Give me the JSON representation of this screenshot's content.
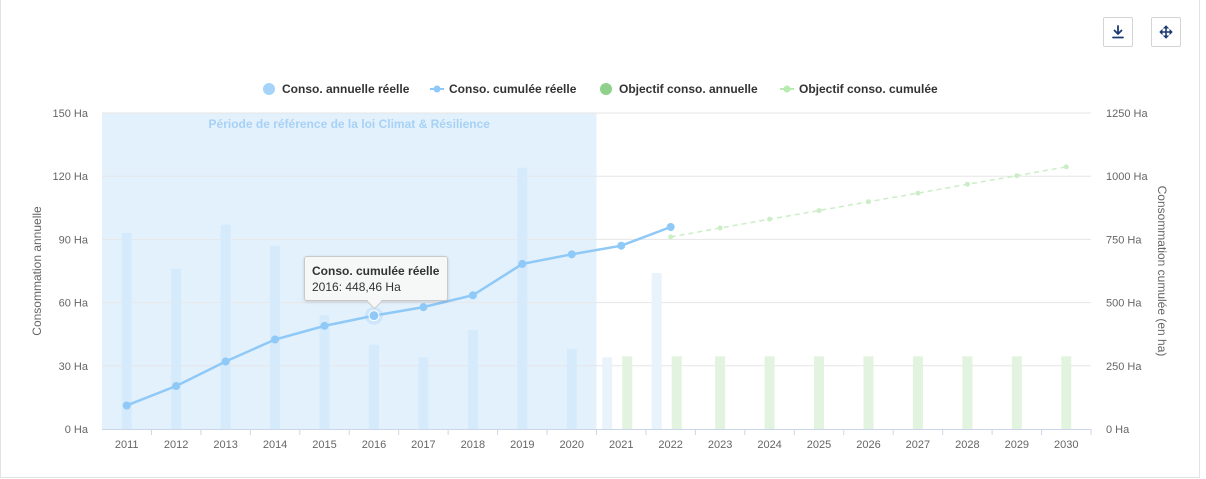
{
  "toolbar": {
    "download_icon": "download-icon",
    "fullscreen_icon": "move-arrows-icon"
  },
  "legend": [
    {
      "label": "Conso. annuelle réelle",
      "color": "#a6d3f9",
      "symbol": "circle"
    },
    {
      "label": "Conso. cumulée réelle",
      "color": "#8fc9f7",
      "symbol": "line-marker"
    },
    {
      "label": "Objectif conso. annuelle",
      "color": "#8fd18a",
      "symbol": "circle"
    },
    {
      "label": "Objectif conso. cumulée",
      "color": "#b6ecb0",
      "symbol": "line-marker"
    }
  ],
  "tooltip": {
    "title": "Conso. cumulée réelle",
    "body": "2016: 448,46 Ha"
  },
  "chart_data": {
    "type": "bar",
    "categories": [
      "2011",
      "2012",
      "2013",
      "2014",
      "2015",
      "2016",
      "2017",
      "2018",
      "2019",
      "2020",
      "2021",
      "2022",
      "2023",
      "2024",
      "2025",
      "2026",
      "2027",
      "2028",
      "2029",
      "2030"
    ],
    "band": {
      "label": "Période de référence de la loi Climat & Résilience",
      "from": "2011",
      "to": "2020",
      "color": "#e3f1fd"
    },
    "y_left": {
      "label": "Consommation annuelle",
      "min": 0,
      "max": 150,
      "ticks": [
        "0 Ha",
        "30 Ha",
        "60 Ha",
        "90 Ha",
        "120 Ha",
        "150 Ha"
      ]
    },
    "y_right": {
      "label": "Consommation cumulée (en ha)",
      "min": 0,
      "max": 1250,
      "ticks": [
        "0 Ha",
        "250 Ha",
        "500 Ha",
        "750 Ha",
        "1000 Ha",
        "1250 Ha"
      ]
    },
    "grid": true,
    "legend_position": "top",
    "series": [
      {
        "name": "Conso. annuelle réelle",
        "type": "bar",
        "axis": "left",
        "color": "#d5eafb",
        "values": [
          93,
          76,
          97,
          87,
          54,
          40,
          34,
          47,
          124,
          38,
          34,
          74,
          null,
          null,
          null,
          null,
          null,
          null,
          null,
          null
        ]
      },
      {
        "name": "Conso. cumulée réelle",
        "type": "line",
        "axis": "right",
        "color": "#8fc9f7",
        "values": [
          93,
          170,
          267,
          354,
          408,
          448.46,
          482,
          529,
          653,
          691,
          725,
          799,
          null,
          null,
          null,
          null,
          null,
          null,
          null,
          null
        ]
      },
      {
        "name": "Objectif conso. annuelle",
        "type": "bar",
        "axis": "left",
        "color": "#e2f3df",
        "values": [
          null,
          null,
          null,
          null,
          null,
          null,
          null,
          null,
          null,
          null,
          34.5,
          34.5,
          34.5,
          34.5,
          34.5,
          34.5,
          34.5,
          34.5,
          34.5,
          34.5
        ]
      },
      {
        "name": "Objectif conso. cumulée",
        "type": "line",
        "axis": "right",
        "color": "#cbeec6",
        "values": [
          null,
          null,
          null,
          null,
          null,
          null,
          null,
          null,
          null,
          null,
          null,
          760,
          795,
          830,
          864,
          899,
          933,
          968,
          1002,
          1037
        ]
      }
    ]
  }
}
